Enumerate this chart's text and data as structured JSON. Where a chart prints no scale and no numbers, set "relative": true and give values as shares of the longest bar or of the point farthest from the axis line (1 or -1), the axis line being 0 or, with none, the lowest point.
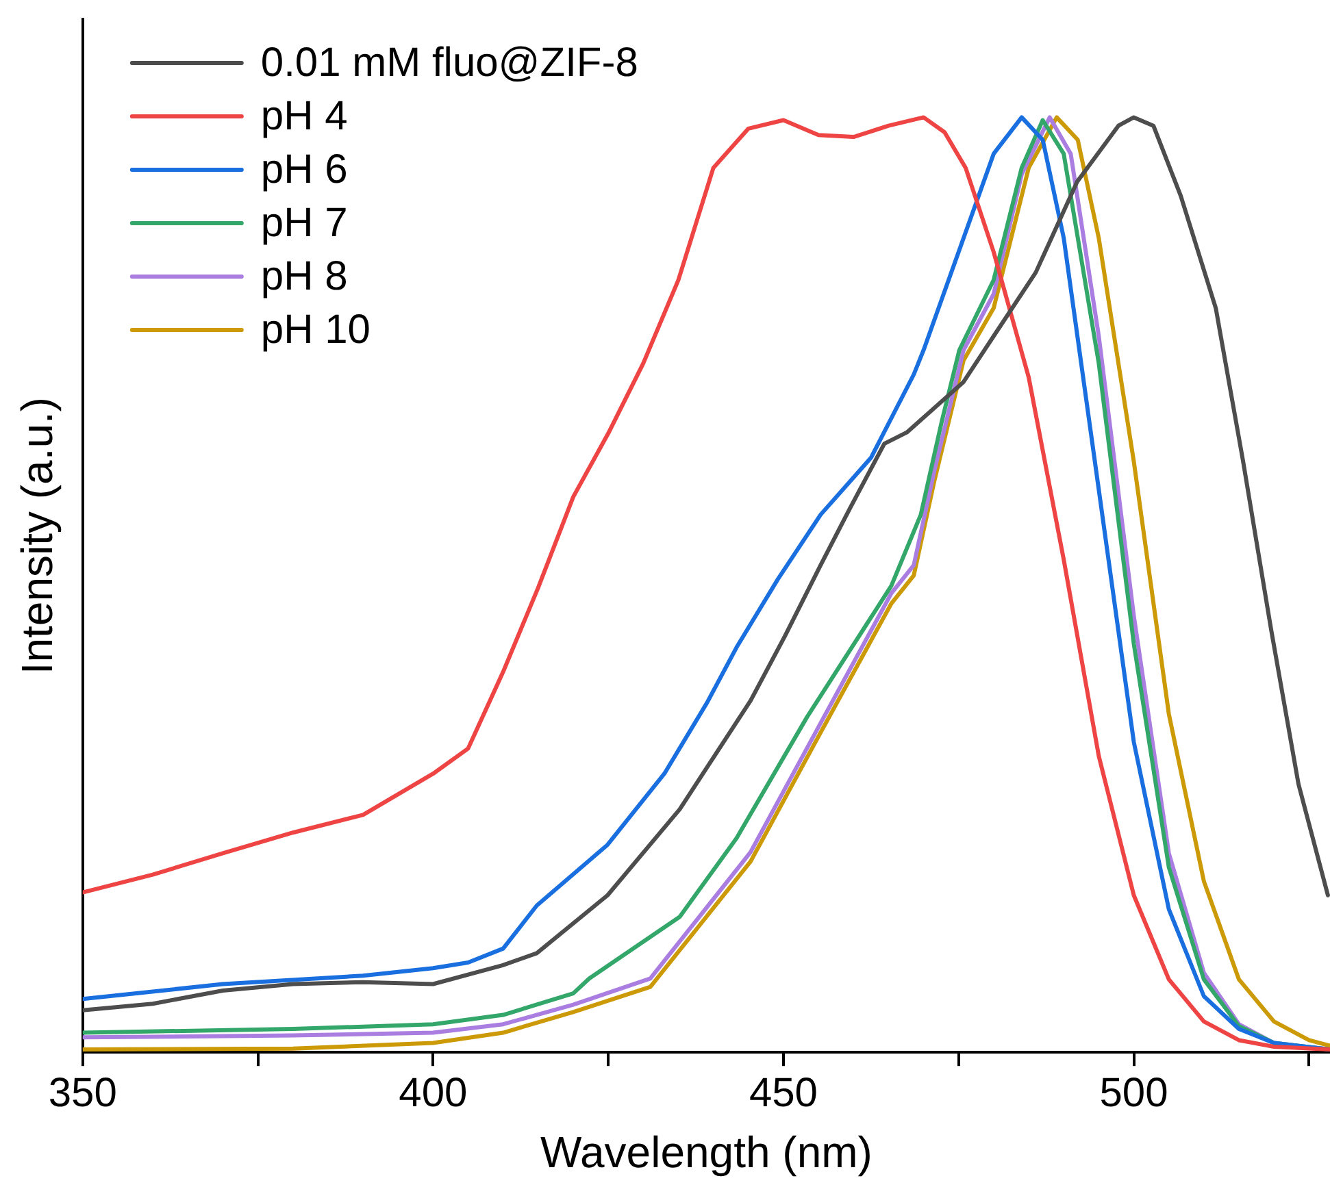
{
  "chart_data": {
    "type": "line",
    "xlabel": "Wavelength (nm)",
    "ylabel": "Intensity (a.u.)",
    "relative": true,
    "xlim": [
      350,
      528
    ],
    "xticks": [
      350,
      {
        "value": 375,
        "label": null
      },
      400,
      {
        "value": 425,
        "label": null
      },
      450,
      {
        "value": 475,
        "label": null
      },
      500,
      {
        "value": 525,
        "label": null
      }
    ],
    "grid": false,
    "legend": "top left",
    "marker": "none",
    "line_style": "solid",
    "series": [
      {
        "name": "0.01 mM fluo@ZIF-8",
        "color": "#4d4d4d",
        "x": [
          350,
          360,
          370,
          380,
          390,
          400,
          409.9,
          414.8,
          424.9,
          435.2,
          445.3,
          450.2,
          455.3,
          459.5,
          464.4,
          467.6,
          475.7,
          480,
          486,
          491.9,
          497.8,
          500,
          502.8,
          506.7,
          511.7,
          515.6,
          519.6,
          523.5,
          527.7
        ],
        "values": [
          0.045,
          0.052,
          0.066,
          0.073,
          0.075,
          0.073,
          0.093,
          0.106,
          0.168,
          0.26,
          0.376,
          0.445,
          0.521,
          0.582,
          0.651,
          0.663,
          0.717,
          0.766,
          0.834,
          0.931,
          0.991,
          1,
          0.991,
          0.916,
          0.796,
          0.632,
          0.452,
          0.287,
          0.168
        ]
      },
      {
        "name": "pH 4",
        "color": "#ee4444",
        "x": [
          350,
          360,
          370,
          380,
          390,
          400,
          405,
          410,
          415,
          420,
          425,
          430,
          435,
          440,
          445,
          450,
          455,
          460,
          465,
          470,
          473,
          476,
          480,
          485,
          490,
          495,
          500,
          505,
          510,
          515,
          520,
          528
        ],
        "values": [
          0.171,
          0.19,
          0.213,
          0.235,
          0.254,
          0.298,
          0.325,
          0.407,
          0.497,
          0.594,
          0.662,
          0.737,
          0.826,
          0.946,
          0.988,
          0.997,
          0.981,
          0.979,
          0.991,
          1,
          0.984,
          0.946,
          0.856,
          0.722,
          0.527,
          0.317,
          0.168,
          0.078,
          0.033,
          0.013,
          0.006,
          0.003
        ]
      },
      {
        "name": "pH 6",
        "color": "#1a6fe0",
        "x": [
          350,
          370,
          390,
          400,
          405,
          410,
          414.8,
          424.9,
          433,
          439.1,
          443.3,
          449.2,
          455.3,
          462.5,
          468.6,
          470,
          475,
          480,
          484,
          487,
          490,
          495,
          500,
          505,
          510,
          515,
          520,
          528
        ],
        "values": [
          0.057,
          0.073,
          0.082,
          0.09,
          0.096,
          0.111,
          0.157,
          0.222,
          0.298,
          0.374,
          0.433,
          0.506,
          0.575,
          0.636,
          0.725,
          0.751,
          0.856,
          0.961,
          1,
          0.976,
          0.871,
          0.602,
          0.332,
          0.153,
          0.06,
          0.025,
          0.01,
          0.003
        ]
      },
      {
        "name": "pH 7",
        "color": "#33a66a",
        "x": [
          350,
          380,
          400,
          410,
          420,
          422.3,
          435.2,
          443.3,
          453.4,
          465.4,
          469.6,
          472.6,
          475.1,
          480,
          484,
          487,
          490,
          495,
          500,
          505,
          510,
          515,
          520,
          528
        ],
        "values": [
          0.021,
          0.025,
          0.03,
          0.04,
          0.063,
          0.079,
          0.145,
          0.229,
          0.359,
          0.499,
          0.575,
          0.675,
          0.751,
          0.826,
          0.946,
          0.997,
          0.961,
          0.737,
          0.437,
          0.198,
          0.078,
          0.028,
          0.01,
          0.003
        ]
      },
      {
        "name": "pH 8",
        "color": "#aa7de0",
        "x": [
          350,
          380,
          400,
          410,
          420,
          431,
          445.3,
          455.3,
          465.4,
          468.6,
          471.5,
          475.7,
          480,
          484,
          488,
          491,
          495,
          500,
          505,
          510,
          515,
          520,
          528
        ],
        "values": [
          0.016,
          0.018,
          0.021,
          0.03,
          0.051,
          0.079,
          0.214,
          0.352,
          0.491,
          0.521,
          0.621,
          0.751,
          0.811,
          0.939,
          1,
          0.961,
          0.766,
          0.467,
          0.213,
          0.085,
          0.03,
          0.01,
          0.003
        ]
      },
      {
        "name": "pH 10",
        "color": "#cc9a06",
        "x": [
          350,
          380,
          400,
          410,
          420,
          431,
          445.3,
          455.3,
          465.4,
          468.6,
          471.5,
          475.7,
          480,
          485,
          489,
          492,
          495,
          500,
          505,
          510,
          515,
          520,
          525,
          528
        ],
        "values": [
          0.003,
          0.004,
          0.01,
          0.021,
          0.043,
          0.07,
          0.204,
          0.342,
          0.48,
          0.51,
          0.61,
          0.74,
          0.796,
          0.946,
          1,
          0.976,
          0.871,
          0.632,
          0.362,
          0.183,
          0.078,
          0.033,
          0.013,
          0.007
        ]
      }
    ]
  }
}
